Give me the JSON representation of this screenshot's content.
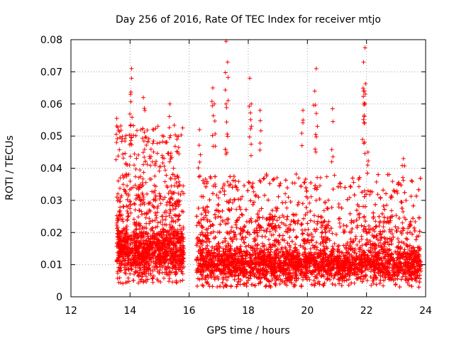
{
  "chart_data": {
    "type": "scatter",
    "title": "Day 256 of 2016, Rate Of TEC Index for receiver mtjo",
    "xlabel": "GPS time / hours",
    "ylabel": "ROTI / TECUs",
    "xlim": [
      12,
      24
    ],
    "ylim": [
      0,
      0.08
    ],
    "xticks": [
      12,
      14,
      16,
      18,
      20,
      22,
      24
    ],
    "yticks": [
      0,
      0.01,
      0.02,
      0.03,
      0.04,
      0.05,
      0.06,
      0.07,
      0.08
    ],
    "xtick_labels": [
      "12",
      "14",
      "16",
      "18",
      "20",
      "22",
      "24"
    ],
    "ytick_labels": [
      "0",
      "0.01",
      "0.02",
      "0.03",
      "0.04",
      "0.05",
      "0.06",
      "0.07",
      "0.08"
    ],
    "grid": true,
    "marker": "+",
    "color": "#ff0000",
    "series": [
      {
        "name": "ROTI",
        "data_segments": [
          {
            "x_range": [
              13.55,
              15.82
            ],
            "typical_range": [
              0.004,
              0.035
            ]
          },
          {
            "x_range": [
              16.25,
              23.85
            ],
            "typical_range": [
              0.003,
              0.025
            ]
          }
        ],
        "peaks": [
          {
            "x": 13.55,
            "y": 0.0555
          },
          {
            "x": 14.05,
            "y": 0.071
          },
          {
            "x": 14.05,
            "y": 0.068
          },
          {
            "x": 14.02,
            "y": 0.063
          },
          {
            "x": 14.45,
            "y": 0.062
          },
          {
            "x": 14.5,
            "y": 0.058
          },
          {
            "x": 15.35,
            "y": 0.06
          },
          {
            "x": 16.35,
            "y": 0.052
          },
          {
            "x": 16.8,
            "y": 0.065
          },
          {
            "x": 16.85,
            "y": 0.06
          },
          {
            "x": 17.25,
            "y": 0.0795
          },
          {
            "x": 17.3,
            "y": 0.073
          },
          {
            "x": 17.25,
            "y": 0.06
          },
          {
            "x": 18.05,
            "y": 0.068
          },
          {
            "x": 18.1,
            "y": 0.06
          },
          {
            "x": 18.4,
            "y": 0.058
          },
          {
            "x": 19.85,
            "y": 0.058
          },
          {
            "x": 20.3,
            "y": 0.071
          },
          {
            "x": 20.25,
            "y": 0.064
          },
          {
            "x": 20.85,
            "y": 0.0585
          },
          {
            "x": 21.95,
            "y": 0.0775
          },
          {
            "x": 21.9,
            "y": 0.073
          },
          {
            "x": 21.9,
            "y": 0.064
          },
          {
            "x": 21.95,
            "y": 0.06
          },
          {
            "x": 22.05,
            "y": 0.045
          },
          {
            "x": 23.25,
            "y": 0.043
          }
        ]
      }
    ]
  }
}
